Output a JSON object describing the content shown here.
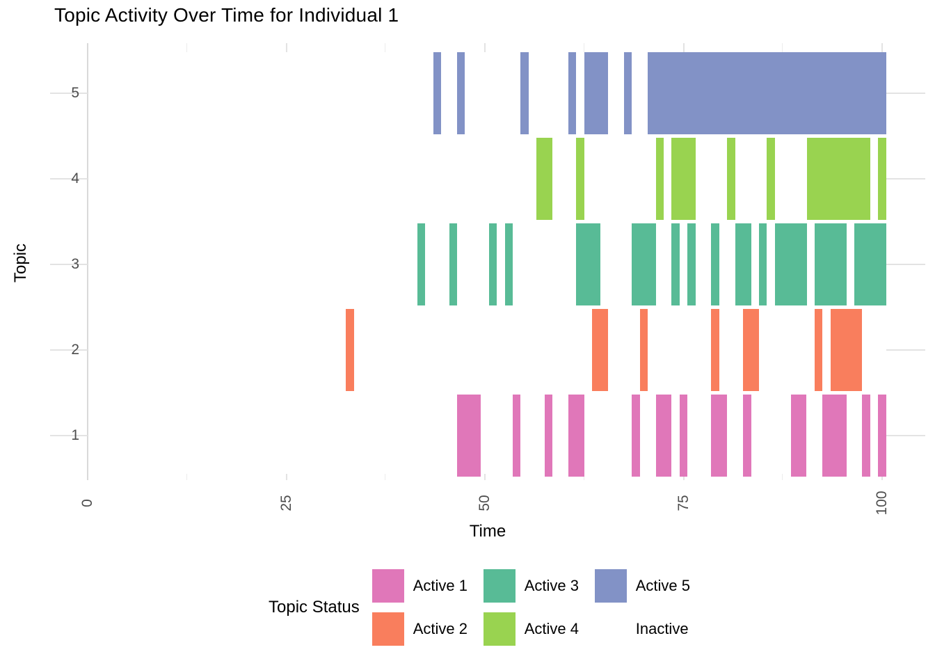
{
  "page": {
    "background": "#FFFFFF"
  },
  "chart_data": {
    "type": "heatmap",
    "subtype": "status-timeline-tiles",
    "title": "Topic Activity Over Time for Individual 1",
    "xlabel": "Time",
    "ylabel": "Topic",
    "x_ticks": [
      0,
      25,
      50,
      75,
      100
    ],
    "x_minor_gridlines": [
      12.5,
      37.5,
      62.5,
      87.5
    ],
    "xlim": [
      -4.7,
      105.4
    ],
    "x_tick_label_angle": -90,
    "y_categories": [
      1,
      2,
      3,
      4,
      5
    ],
    "grid": "light gray stubs; tiles drawn over grid",
    "legend_position": "bottom",
    "legend": {
      "title": "Topic Status",
      "entries": [
        {
          "label": "Active 1",
          "color": "#E077B9"
        },
        {
          "label": "Active 2",
          "color": "#F97E5D"
        },
        {
          "label": "Active 3",
          "color": "#58BB96"
        },
        {
          "label": "Active 4",
          "color": "#99D350"
        },
        {
          "label": "Active 5",
          "color": "#8292C6"
        },
        {
          "label": "Inactive",
          "color": "#FFFFFF"
        }
      ]
    },
    "inactive_color": "#FFFFFF",
    "colors": {
      "tick_text": "#4D4D4D",
      "title_text": "#000000",
      "grid_major": "#E3E3E3",
      "grid_minor": "#ECECEC",
      "grid_zero_line": "#D9D9D9"
    },
    "series": [
      {
        "topic": 1,
        "status_label": "Active 1",
        "color": "#E077B9",
        "active_intervals": [
          [
            46.5,
            49.5
          ],
          [
            53.5,
            54.5
          ],
          [
            57.5,
            58.5
          ],
          [
            60.5,
            62.5
          ],
          [
            68.5,
            69.5
          ],
          [
            71.5,
            73.5
          ],
          [
            74.5,
            75.5
          ],
          [
            78.5,
            80.5
          ],
          [
            82.5,
            83.5
          ],
          [
            88.5,
            90.5
          ],
          [
            92.5,
            95.5
          ],
          [
            97.5,
            98.5
          ],
          [
            99.5,
            100.5
          ]
        ]
      },
      {
        "topic": 2,
        "status_label": "Active 2",
        "color": "#F97E5D",
        "active_intervals": [
          [
            32.5,
            33.5
          ],
          [
            63.5,
            65.5
          ],
          [
            69.5,
            70.5
          ],
          [
            78.5,
            79.5
          ],
          [
            82.5,
            84.5
          ],
          [
            91.5,
            92.5
          ],
          [
            93.5,
            97.5
          ]
        ]
      },
      {
        "topic": 3,
        "status_label": "Active 3",
        "color": "#58BB96",
        "active_intervals": [
          [
            41.5,
            42.5
          ],
          [
            45.5,
            46.5
          ],
          [
            50.5,
            51.5
          ],
          [
            52.5,
            53.5
          ],
          [
            61.5,
            64.5
          ],
          [
            68.5,
            71.5
          ],
          [
            73.5,
            74.5
          ],
          [
            75.5,
            76.5
          ],
          [
            78.5,
            79.5
          ],
          [
            81.5,
            83.5
          ],
          [
            84.5,
            85.5
          ],
          [
            86.5,
            90.5
          ],
          [
            91.5,
            95.5
          ],
          [
            96.5,
            100.5
          ]
        ]
      },
      {
        "topic": 4,
        "status_label": "Active 4",
        "color": "#99D350",
        "active_intervals": [
          [
            56.5,
            58.5
          ],
          [
            61.5,
            62.5
          ],
          [
            71.5,
            72.5
          ],
          [
            73.5,
            76.5
          ],
          [
            80.5,
            81.5
          ],
          [
            85.5,
            86.5
          ],
          [
            90.5,
            98.5
          ],
          [
            99.5,
            100.5
          ]
        ]
      },
      {
        "topic": 5,
        "status_label": "Active 5",
        "color": "#8292C6",
        "active_intervals": [
          [
            43.5,
            44.5
          ],
          [
            46.5,
            47.5
          ],
          [
            54.5,
            55.5
          ],
          [
            60.5,
            61.5
          ],
          [
            62.5,
            65.5
          ],
          [
            67.5,
            68.5
          ],
          [
            70.5,
            100.5
          ]
        ]
      }
    ]
  }
}
